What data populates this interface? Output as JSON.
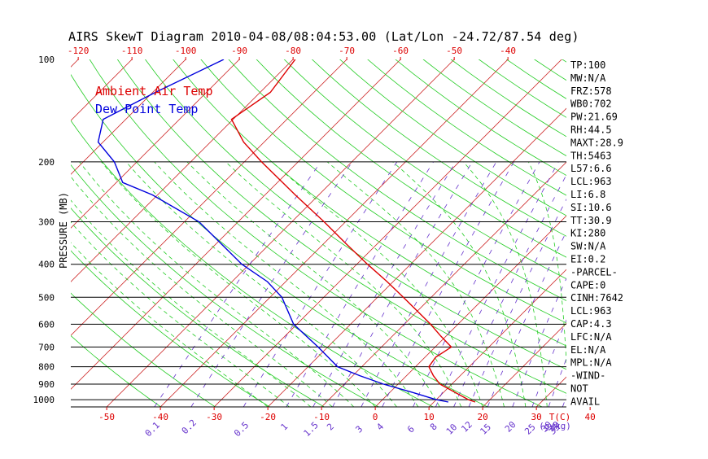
{
  "title": "AIRS SkewT Diagram 2010-04-08/08:04:53.00 (Lat/Lon -24.72/87.54 deg)",
  "colors": {
    "background": "#ffffff",
    "temperature": "#dd0000",
    "dewpoint": "#0000dd",
    "isotherm": "#cc2222",
    "dry_adiabat": "#22cc22",
    "moist_adiabat": "#22cc22",
    "mixing_ratio": "#6633cc",
    "isobar": "#000000",
    "bottom_labels": "#dd0000",
    "mixing_labels": "#6633cc"
  },
  "chart_data": {
    "type": "line",
    "title": "AIRS SkewT Diagram 2010-04-08/08:04:53.00 (Lat/Lon -24.72/87.54 deg)",
    "ylabel": "PRESSURE (MB)",
    "xlabel": "T(C)",
    "y_scale": "log",
    "y_range": [
      100,
      1050
    ],
    "y_ticks": [
      100,
      200,
      300,
      400,
      500,
      600,
      700,
      800,
      900,
      1000
    ],
    "isobars": [
      200,
      300,
      400,
      500,
      600,
      700,
      800,
      900,
      1000
    ],
    "top_ticks": [
      -120,
      -110,
      -100,
      -90,
      -80,
      -70,
      -60,
      -50,
      -40
    ],
    "bottom_ticks": [
      -50,
      -40,
      -30,
      -20,
      -10,
      0,
      10,
      20,
      30,
      40
    ],
    "bottom_unit_label": "T(C)",
    "mixing_ratio_labels": [
      "0.1",
      "0.2",
      "0.5",
      "1",
      "1.5",
      "2",
      "3",
      "4",
      "6",
      "8",
      "10",
      "12",
      "15",
      "20",
      "25",
      "30",
      "35",
      "40"
    ],
    "mixing_ratio_unit_label": "(g/kg)",
    "legend": [
      "Ambient Air Temp",
      "Dew Point Temp"
    ],
    "series": [
      {
        "name": "Ambient Air Temp",
        "color": "#dd0000",
        "points": [
          {
            "p": 100,
            "t": -79.6
          },
          {
            "p": 125,
            "t": -78.1
          },
          {
            "p": 150,
            "t": -80.3
          },
          {
            "p": 175,
            "t": -73.8
          },
          {
            "p": 200,
            "t": -66.8
          },
          {
            "p": 250,
            "t": -54.4
          },
          {
            "p": 300,
            "t": -44.0
          },
          {
            "p": 350,
            "t": -35.5
          },
          {
            "p": 400,
            "t": -28.0
          },
          {
            "p": 450,
            "t": -21.1
          },
          {
            "p": 500,
            "t": -15.2
          },
          {
            "p": 550,
            "t": -9.9
          },
          {
            "p": 600,
            "t": -5.1
          },
          {
            "p": 650,
            "t": -1.0
          },
          {
            "p": 700,
            "t": 3.0
          },
          {
            "p": 750,
            "t": 2.0
          },
          {
            "p": 800,
            "t": 2.5
          },
          {
            "p": 850,
            "t": 5.0
          },
          {
            "p": 900,
            "t": 7.8
          },
          {
            "p": 950,
            "t": 12.0
          },
          {
            "p": 1000,
            "t": 16.0
          },
          {
            "p": 1016,
            "t": 17.7
          }
        ]
      },
      {
        "name": "Dew Point Temp",
        "color": "#0000dd",
        "points": [
          {
            "p": 100,
            "t": -92.9
          },
          {
            "p": 125,
            "t": -99.5
          },
          {
            "p": 150,
            "t": -104.2
          },
          {
            "p": 175,
            "t": -100.9
          },
          {
            "p": 200,
            "t": -94.2
          },
          {
            "p": 230,
            "t": -88.8
          },
          {
            "p": 250,
            "t": -81.0
          },
          {
            "p": 300,
            "t": -67.3
          },
          {
            "p": 400,
            "t": -51.4
          },
          {
            "p": 450,
            "t": -43.4
          },
          {
            "p": 500,
            "t": -37.8
          },
          {
            "p": 600,
            "t": -30.6
          },
          {
            "p": 700,
            "t": -21.8
          },
          {
            "p": 800,
            "t": -14.5
          },
          {
            "p": 850,
            "t": -8.7
          },
          {
            "p": 900,
            "t": -2.7
          },
          {
            "p": 950,
            "t": 4.0
          },
          {
            "p": 1000,
            "t": 10.0
          },
          {
            "p": 1016,
            "t": 12.7
          }
        ]
      }
    ],
    "indices": [
      "TP:100",
      "MW:N/A",
      "FRZ:578",
      "WB0:702",
      "PW:21.69",
      "RH:44.5",
      "MAXT:28.9",
      "TH:5463",
      "L57:6.6",
      "LCL:963",
      "LI:6.8",
      "SI:10.6",
      "TT:30.9",
      "KI:280",
      "SW:N/A",
      "EI:0.2",
      "-PARCEL-",
      "CAPE:0",
      "CINH:7642",
      "LCL:963",
      "CAP:4.3",
      "LFC:N/A",
      "EL:N/A",
      "MPL:N/A",
      "-WIND-",
      " NOT",
      " AVAIL"
    ]
  }
}
